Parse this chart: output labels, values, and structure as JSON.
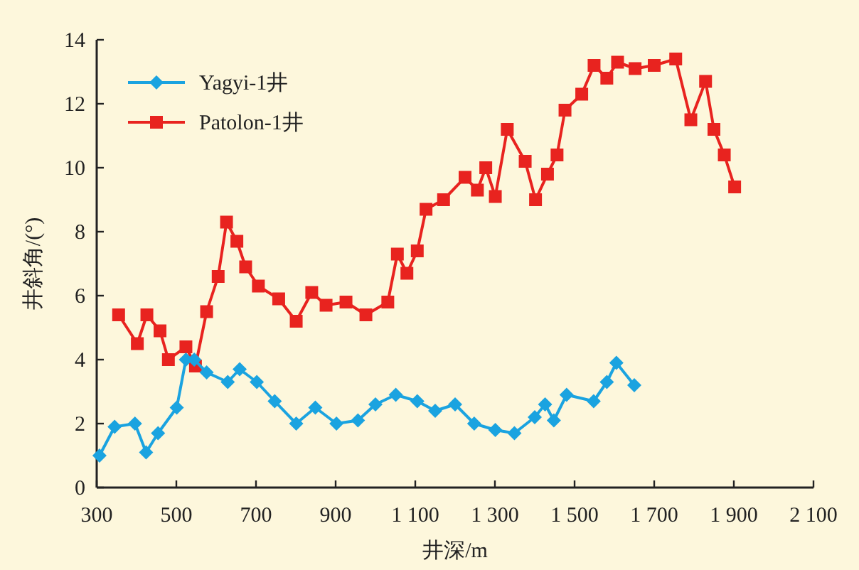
{
  "chart_data": {
    "type": "line",
    "xlabel": "井深/m",
    "ylabel": "井斜角/(°)",
    "xlim": [
      300,
      2100
    ],
    "xticks": [
      300,
      500,
      700,
      900,
      {
        "value": 1100,
        "label": "1 100"
      },
      {
        "value": 1300,
        "label": "1 300"
      },
      {
        "value": 1500,
        "label": "1 500"
      },
      {
        "value": 1700,
        "label": "1 700"
      },
      {
        "value": 1900,
        "label": "1 900"
      },
      {
        "value": 2100,
        "label": "2 100"
      }
    ],
    "ylim": [
      0,
      14
    ],
    "yticks": [
      0,
      2,
      4,
      6,
      8,
      10,
      12,
      14
    ],
    "legend": "top left",
    "series": [
      {
        "name": "Yagyi-1井",
        "color": "#1aa3e0",
        "marker": "diamond",
        "x": [
          307,
          345,
          396,
          424,
          454,
          501,
          524,
          545,
          576,
          629,
          659,
          702,
          747,
          801,
          849,
          902,
          956,
          1000,
          1051,
          1105,
          1150,
          1200,
          1248,
          1301,
          1349,
          1400,
          1426,
          1448,
          1480,
          1548,
          1581,
          1605,
          1650
        ],
        "values": [
          1.0,
          1.9,
          2.0,
          1.1,
          1.7,
          2.5,
          4.0,
          4.0,
          3.6,
          3.3,
          3.7,
          3.3,
          2.7,
          2.0,
          2.5,
          2.0,
          2.1,
          2.6,
          2.9,
          2.7,
          2.4,
          2.6,
          2.0,
          1.8,
          1.7,
          2.2,
          2.6,
          2.1,
          2.9,
          2.7,
          3.3,
          3.9,
          3.2
        ]
      },
      {
        "name": "Patolon-1井",
        "color": "#e8231f",
        "marker": "square",
        "x": [
          355,
          402,
          426,
          459,
          480,
          524,
          548,
          576,
          605,
          626,
          652,
          674,
          706,
          757,
          801,
          840,
          876,
          926,
          976,
          1031,
          1055,
          1079,
          1105,
          1127,
          1171,
          1225,
          1256,
          1277,
          1301,
          1331,
          1376,
          1402,
          1432,
          1456,
          1476,
          1518,
          1549,
          1581,
          1608,
          1652,
          1700,
          1754,
          1792,
          1829,
          1850,
          1876,
          1902
        ],
        "values": [
          5.4,
          4.5,
          5.4,
          4.9,
          4.0,
          4.4,
          3.8,
          5.5,
          6.6,
          8.3,
          7.7,
          6.9,
          6.3,
          5.9,
          5.2,
          6.1,
          5.7,
          5.8,
          5.4,
          5.8,
          7.3,
          6.7,
          7.4,
          8.7,
          9.0,
          9.7,
          9.3,
          10.0,
          9.1,
          11.2,
          10.2,
          9.0,
          9.8,
          10.4,
          11.8,
          12.3,
          13.2,
          12.8,
          13.3,
          13.1,
          13.2,
          13.4,
          11.5,
          12.7,
          11.2,
          10.4,
          9.4
        ]
      }
    ]
  }
}
